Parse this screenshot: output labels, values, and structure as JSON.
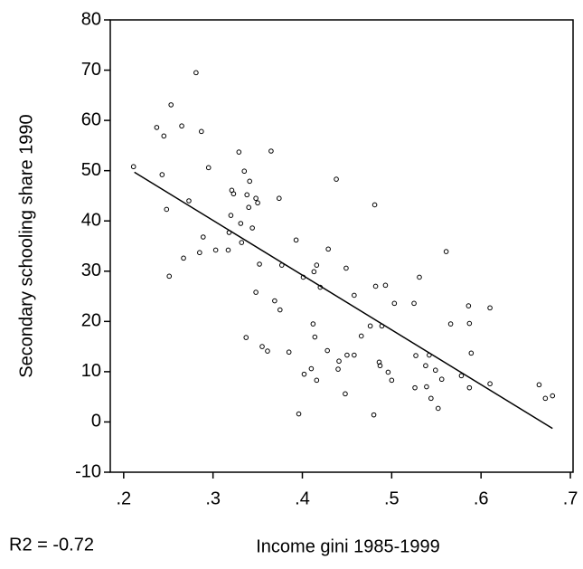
{
  "chart_data": {
    "type": "scatter",
    "x_label": "Income gini 1985-1999",
    "y_label": "Secondary schooling share 1990",
    "annotation": "R2 = -0.72",
    "xlim": [
      0.185,
      0.703
    ],
    "ylim": [
      -10,
      80
    ],
    "xticks": [
      {
        "value": 0.2,
        "label": ".2"
      },
      {
        "value": 0.3,
        "label": ".3"
      },
      {
        "value": 0.4,
        "label": ".4"
      },
      {
        "value": 0.5,
        "label": ".5"
      },
      {
        "value": 0.6,
        "label": ".6"
      },
      {
        "value": 0.7,
        "label": ".7"
      }
    ],
    "yticks": [
      -10,
      0,
      10,
      20,
      30,
      40,
      50,
      60,
      70,
      80
    ],
    "color": "#000000",
    "x": [
      0.211,
      0.237,
      0.245,
      0.253,
      0.243,
      0.248,
      0.251,
      0.265,
      0.267,
      0.273,
      0.281,
      0.285,
      0.287,
      0.289,
      0.295,
      0.303,
      0.317,
      0.318,
      0.32,
      0.321,
      0.323,
      0.329,
      0.331,
      0.332,
      0.335,
      0.338,
      0.34,
      0.341,
      0.337,
      0.344,
      0.348,
      0.35,
      0.348,
      0.352,
      0.355,
      0.361,
      0.365,
      0.369,
      0.374,
      0.377,
      0.375,
      0.385,
      0.393,
      0.396,
      0.401,
      0.402,
      0.41,
      0.412,
      0.413,
      0.414,
      0.416,
      0.416,
      0.42,
      0.428,
      0.429,
      0.438,
      0.44,
      0.441,
      0.449,
      0.448,
      0.45,
      0.458,
      0.458,
      0.466,
      0.476,
      0.48,
      0.481,
      0.482,
      0.486,
      0.487,
      0.489,
      0.493,
      0.496,
      0.5,
      0.503,
      0.525,
      0.526,
      0.527,
      0.531,
      0.538,
      0.539,
      0.542,
      0.544,
      0.549,
      0.552,
      0.556,
      0.561,
      0.566,
      0.578,
      0.586,
      0.587,
      0.587,
      0.589,
      0.61,
      0.61,
      0.665,
      0.672,
      0.68
    ],
    "values": [
      50.8,
      58.6,
      56.9,
      63.1,
      49.2,
      42.3,
      29.0,
      58.9,
      32.6,
      44.0,
      69.5,
      33.7,
      57.8,
      36.8,
      50.6,
      34.2,
      34.2,
      37.7,
      41.1,
      46.1,
      45.4,
      53.7,
      39.5,
      35.7,
      49.9,
      45.2,
      42.7,
      47.9,
      16.8,
      38.6,
      44.5,
      43.6,
      25.8,
      31.4,
      15.0,
      14.1,
      53.9,
      24.1,
      44.5,
      31.2,
      22.3,
      13.9,
      36.2,
      1.6,
      28.8,
      9.5,
      10.6,
      19.5,
      29.9,
      16.9,
      31.2,
      8.3,
      26.8,
      14.2,
      34.4,
      48.3,
      10.5,
      12.1,
      30.6,
      5.6,
      13.3,
      13.3,
      25.2,
      17.1,
      19.1,
      1.4,
      43.2,
      27.0,
      11.9,
      11.2,
      19.1,
      27.2,
      9.9,
      8.3,
      23.6,
      23.6,
      6.8,
      13.2,
      28.8,
      11.2,
      7.0,
      13.3,
      4.7,
      10.3,
      2.7,
      8.5,
      33.9,
      19.5,
      9.2,
      23.1,
      19.6,
      6.8,
      13.7,
      22.7,
      7.6,
      7.4,
      4.7,
      5.2
    ],
    "fit": {
      "x": [
        0.212,
        0.68
      ],
      "y": [
        49.7,
        -1.3
      ]
    }
  }
}
